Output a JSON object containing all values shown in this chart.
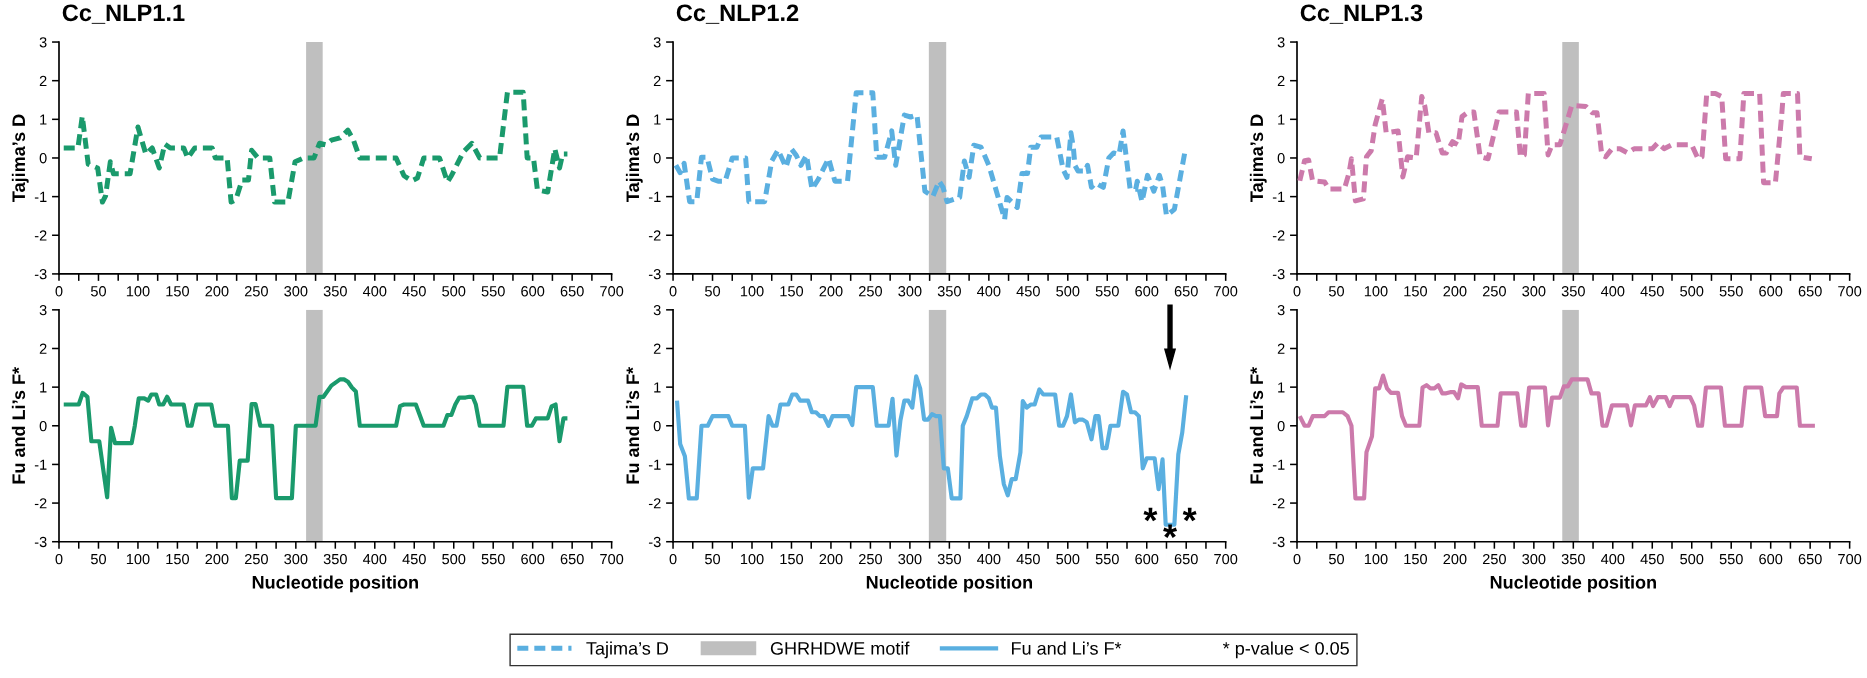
{
  "chart_data": [
    {
      "type": "line",
      "title": "Cc_NLP1.1",
      "ylabel": "Tajima’s D",
      "xlim": [
        0,
        700
      ],
      "ylim": [
        -3,
        3
      ],
      "yticks": [
        -3,
        -2,
        -1,
        0,
        1,
        2,
        3
      ],
      "xticks": [
        0,
        {
          "value": 25,
          "label": null
        },
        50,
        {
          "value": 75,
          "label": null
        },
        100,
        {
          "value": 125,
          "label": null
        },
        150,
        {
          "value": 175,
          "label": null
        },
        200,
        {
          "value": 225,
          "label": null
        },
        250,
        {
          "value": 275,
          "label": null
        },
        300,
        {
          "value": 325,
          "label": null
        },
        350,
        {
          "value": 375,
          "label": null
        },
        400,
        {
          "value": 425,
          "label": null
        },
        450,
        {
          "value": 475,
          "label": null
        },
        500,
        {
          "value": 525,
          "label": null
        },
        550,
        {
          "value": 575,
          "label": null
        },
        600,
        {
          "value": 625,
          "label": null
        },
        650,
        {
          "value": 675,
          "label": null
        },
        700
      ],
      "grid": false,
      "bands": [
        {
          "axis": "x",
          "from": 313,
          "to": 334,
          "color": "#bfbfbf"
        }
      ],
      "series": [
        {
          "color": "#1a9a6c",
          "line_style": "dashed",
          "x": [
            6,
            24,
            29.5,
            37,
            49,
            55,
            59,
            65,
            69,
            90,
            100,
            110,
            118,
            127,
            134,
            141,
            158,
            163,
            172,
            194,
            198,
            213,
            218,
            224,
            232,
            240,
            244,
            252,
            267,
            273,
            290,
            299,
            310,
            323,
            330,
            338,
            345,
            356,
            366,
            373,
            381,
            427,
            437,
            447,
            454,
            462,
            482,
            492,
            497,
            512,
            523,
            533,
            558,
            568,
            588,
            593,
            601,
            606,
            619,
            628,
            634,
            638,
            644
          ],
          "values": [
            0.26,
            0.26,
            1.08,
            -0.16,
            -0.26,
            -1.14,
            -0.98,
            -0.1,
            -0.41,
            -0.41,
            0.8,
            0.1,
            0.26,
            -0.26,
            0.36,
            0.26,
            0.26,
            0,
            0.26,
            0.26,
            0,
            0,
            -1.14,
            -1.08,
            -0.57,
            -0.57,
            0.2,
            0,
            0,
            -1.14,
            -1.14,
            -0.1,
            0,
            0,
            0.38,
            0.34,
            0.46,
            0.52,
            0.72,
            0.46,
            0,
            0,
            -0.46,
            -0.59,
            -0.52,
            0,
            0,
            -0.62,
            -0.46,
            0.15,
            0.38,
            0,
            0,
            1.7,
            1.7,
            0,
            0,
            -0.83,
            -0.88,
            0.24,
            -0.26,
            0.1,
            0.1
          ]
        }
      ]
    },
    {
      "type": "line",
      "title": "Cc_NLP1.2",
      "ylabel": "Tajima’s D",
      "xlim": [
        0,
        700
      ],
      "ylim": [
        -3,
        3
      ],
      "yticks": [
        -3,
        -2,
        -1,
        0,
        1,
        2,
        3
      ],
      "xticks": [
        0,
        {
          "value": 25,
          "label": null
        },
        50,
        {
          "value": 75,
          "label": null
        },
        100,
        {
          "value": 125,
          "label": null
        },
        150,
        {
          "value": 175,
          "label": null
        },
        200,
        {
          "value": 225,
          "label": null
        },
        250,
        {
          "value": 275,
          "label": null
        },
        300,
        {
          "value": 325,
          "label": null
        },
        350,
        {
          "value": 375,
          "label": null
        },
        400,
        {
          "value": 425,
          "label": null
        },
        450,
        {
          "value": 475,
          "label": null
        },
        500,
        {
          "value": 525,
          "label": null
        },
        550,
        {
          "value": 575,
          "label": null
        },
        600,
        {
          "value": 625,
          "label": null
        },
        650,
        {
          "value": 675,
          "label": null
        },
        700
      ],
      "grid": false,
      "bands": [
        {
          "axis": "x",
          "from": 324,
          "to": 346,
          "color": "#bfbfbf"
        }
      ],
      "series": [
        {
          "name": "Tajima’s D",
          "color": "#5aafe0",
          "line_style": "dashed",
          "x": [
            3.6,
            9,
            14,
            21,
            30,
            36,
            43,
            50,
            57,
            66,
            75,
            92,
            96,
            116,
            125,
            133,
            143,
            150,
            156,
            162,
            169,
            176,
            184,
            197,
            205,
            221,
            232,
            253,
            258,
            268,
            277,
            282,
            293,
            301,
            309,
            319,
            329,
            337,
            342,
            347,
            363,
            369,
            375,
            381,
            390,
            400,
            420,
            423,
            436,
            442,
            449,
            453,
            461,
            466,
            486,
            494,
            499,
            504,
            507,
            509,
            513,
            522,
            525,
            530,
            535,
            545,
            552,
            558,
            565,
            570,
            579,
            586,
            588,
            594,
            601,
            609,
            616,
            620,
            625,
            635,
            649
          ],
          "values": [
            -0.19,
            -0.38,
            -0.14,
            -1.13,
            -1.13,
            0.02,
            0.02,
            -0.55,
            -0.6,
            -0.6,
            0,
            0,
            -1.13,
            -1.13,
            -0.08,
            0.21,
            -0.24,
            0.23,
            0.07,
            -0.19,
            0.07,
            -0.81,
            -0.55,
            -0.01,
            -0.6,
            -0.6,
            1.69,
            1.69,
            0.02,
            0.02,
            0.7,
            -0.19,
            1.11,
            1.06,
            1.11,
            -0.86,
            -1.0,
            -0.6,
            -0.76,
            -1.13,
            -1.02,
            -0.08,
            -0.5,
            0.33,
            0.28,
            -0.19,
            -1.59,
            -1.02,
            -1.28,
            -0.4,
            -0.4,
            0.28,
            0.28,
            0.54,
            0.54,
            -0.29,
            -0.5,
            0.65,
            0.28,
            -0.19,
            -0.34,
            -0.34,
            -0.19,
            -0.76,
            -0.65,
            -0.76,
            0,
            0.13,
            0.09,
            0.7,
            -0.81,
            -0.81,
            -0.6,
            -1.13,
            -0.45,
            -0.86,
            -0.45,
            -0.71,
            -1.49,
            -1.33,
            0.23
          ]
        }
      ]
    },
    {
      "type": "line",
      "title": "Cc_NLP1.3",
      "ylabel": "Tajima’s D",
      "xlim": [
        0,
        700
      ],
      "ylim": [
        -3,
        3
      ],
      "yticks": [
        -3,
        -2,
        -1,
        0,
        1,
        2,
        3
      ],
      "xticks": [
        0,
        {
          "value": 25,
          "label": null
        },
        50,
        {
          "value": 75,
          "label": null
        },
        100,
        {
          "value": 125,
          "label": null
        },
        150,
        {
          "value": 175,
          "label": null
        },
        200,
        {
          "value": 225,
          "label": null
        },
        250,
        {
          "value": 275,
          "label": null
        },
        300,
        {
          "value": 325,
          "label": null
        },
        350,
        {
          "value": 375,
          "label": null
        },
        400,
        {
          "value": 425,
          "label": null
        },
        450,
        {
          "value": 475,
          "label": null
        },
        500,
        {
          "value": 525,
          "label": null
        },
        550,
        {
          "value": 575,
          "label": null
        },
        600,
        {
          "value": 625,
          "label": null
        },
        650,
        {
          "value": 675,
          "label": null
        },
        700
      ],
      "grid": false,
      "bands": [
        {
          "axis": "x",
          "from": 336,
          "to": 357,
          "color": "#bfbfbf"
        }
      ],
      "series": [
        {
          "color": "#cc7aab",
          "line_style": "dashed",
          "x": [
            3.5,
            9.6,
            14.7,
            19.7,
            35,
            40,
            60,
            66,
            69,
            74,
            84,
            88,
            94,
            99,
            108,
            113,
            128,
            134,
            140,
            151,
            158,
            162,
            167,
            176,
            184,
            189,
            197,
            204,
            209,
            217,
            224,
            232,
            242,
            256,
            278,
            283,
            288,
            293,
            313,
            318,
            323,
            333,
            348,
            366,
            374,
            380,
            386,
            391,
            399,
            409,
            419,
            427,
            450,
            457,
            465,
            475,
            500,
            508,
            513,
            519,
            530,
            538,
            543,
            561,
            566,
            586,
            591,
            606,
            614,
            616,
            634,
            637,
            652
          ],
          "values": [
            -0.59,
            -0.07,
            -0.05,
            -0.59,
            -0.62,
            -0.8,
            -0.8,
            -0.38,
            -0.02,
            -1.11,
            -1.06,
            0.03,
            0.19,
            0.86,
            1.53,
            0.65,
            0.7,
            -0.49,
            0.03,
            0,
            1.59,
            1.33,
            0.65,
            0.65,
            0.13,
            0.13,
            0.42,
            0.34,
            1.07,
            1.19,
            1.19,
            0.03,
            -0.02,
            1.19,
            1.19,
            0.03,
            0.08,
            1.67,
            1.67,
            0.08,
            0.34,
            0.34,
            1.36,
            1.33,
            1.17,
            1.17,
            0.08,
            0.03,
            0.24,
            0.24,
            0.13,
            0.24,
            0.24,
            0.39,
            0.24,
            0.34,
            0.34,
            -0.02,
            0.03,
            1.67,
            1.67,
            1.59,
            -0.02,
            -0.02,
            1.67,
            1.67,
            -0.64,
            -0.64,
            1.12,
            1.67,
            1.67,
            0.03,
            -0.02
          ]
        }
      ]
    },
    {
      "type": "line",
      "xlabel": "Nucleotide position",
      "ylabel": "Fu and Li’s F*",
      "xlim": [
        0,
        700
      ],
      "ylim": [
        -3,
        3
      ],
      "yticks": [
        -3,
        -2,
        -1,
        0,
        1,
        2,
        3
      ],
      "xticks": [
        0,
        {
          "value": 25,
          "label": null
        },
        50,
        {
          "value": 75,
          "label": null
        },
        100,
        {
          "value": 125,
          "label": null
        },
        150,
        {
          "value": 175,
          "label": null
        },
        200,
        {
          "value": 225,
          "label": null
        },
        250,
        {
          "value": 275,
          "label": null
        },
        300,
        {
          "value": 325,
          "label": null
        },
        350,
        {
          "value": 375,
          "label": null
        },
        400,
        {
          "value": 425,
          "label": null
        },
        450,
        {
          "value": 475,
          "label": null
        },
        500,
        {
          "value": 525,
          "label": null
        },
        550,
        {
          "value": 575,
          "label": null
        },
        600,
        {
          "value": 625,
          "label": null
        },
        650,
        {
          "value": 675,
          "label": null
        },
        700
      ],
      "grid": false,
      "bands": [
        {
          "axis": "x",
          "from": 313,
          "to": 334,
          "color": "#bfbfbf"
        }
      ],
      "series": [
        {
          "color": "#1a9a6c",
          "line_style": "solid",
          "x": [
            6,
            25,
            30,
            36,
            41,
            51,
            61,
            66,
            71,
            92,
            96,
            101,
            108,
            113,
            117,
            123,
            127,
            132,
            137,
            142,
            158,
            163,
            168,
            174,
            193,
            198,
            214,
            219,
            224,
            229,
            239,
            244,
            249,
            255,
            270,
            275,
            295,
            300,
            325,
            330,
            335,
            345,
            356,
            361,
            366,
            371,
            376,
            381,
            427,
            432,
            437,
            452,
            462,
            487,
            492,
            497,
            502,
            507,
            515,
            520,
            524,
            528,
            533,
            563,
            568,
            588,
            593,
            599,
            604,
            619,
            624,
            629,
            634,
            639,
            644
          ],
          "values": [
            0.55,
            0.55,
            0.85,
            0.75,
            -0.4,
            -0.4,
            -1.85,
            -0.05,
            -0.45,
            -0.45,
            0,
            0.71,
            0.71,
            0.65,
            0.81,
            0.81,
            0.55,
            0.55,
            0.75,
            0.55,
            0.55,
            0,
            0,
            0.55,
            0.55,
            0,
            0,
            -1.87,
            -1.87,
            -0.9,
            -0.9,
            0.56,
            0.56,
            0,
            0,
            -1.87,
            -1.87,
            0,
            0,
            0.75,
            0.75,
            1.04,
            1.2,
            1.2,
            1.14,
            0.99,
            0.89,
            0,
            0,
            0.51,
            0.55,
            0.55,
            0,
            0,
            0.28,
            0.28,
            0.55,
            0.73,
            0.73,
            0.75,
            0.75,
            0.55,
            0,
            0,
            1.01,
            1.01,
            0,
            0,
            0.19,
            0.19,
            0.5,
            0.55,
            -0.4,
            0.19,
            0.19
          ]
        }
      ]
    },
    {
      "type": "line",
      "xlabel": "Nucleotide position",
      "ylabel": "Fu and Li’s F*",
      "xlim": [
        0,
        700
      ],
      "ylim": [
        -3,
        3
      ],
      "yticks": [
        -3,
        -2,
        -1,
        0,
        1,
        2,
        3
      ],
      "xticks": [
        0,
        {
          "value": 25,
          "label": null
        },
        50,
        {
          "value": 75,
          "label": null
        },
        100,
        {
          "value": 125,
          "label": null
        },
        150,
        {
          "value": 175,
          "label": null
        },
        200,
        {
          "value": 225,
          "label": null
        },
        250,
        {
          "value": 275,
          "label": null
        },
        300,
        {
          "value": 325,
          "label": null
        },
        350,
        {
          "value": 375,
          "label": null
        },
        400,
        {
          "value": 425,
          "label": null
        },
        450,
        {
          "value": 475,
          "label": null
        },
        500,
        {
          "value": 525,
          "label": null
        },
        550,
        {
          "value": 575,
          "label": null
        },
        600,
        {
          "value": 625,
          "label": null
        },
        650,
        {
          "value": 675,
          "label": null
        },
        700
      ],
      "grid": false,
      "legend": "bottom",
      "bands": [
        {
          "axis": "x",
          "from": 324,
          "to": 346,
          "color": "#bfbfbf",
          "label": "GHRHDWE motif"
        }
      ],
      "annotations": [
        {
          "text": "*",
          "x": 624,
          "y": -2.56
        },
        {
          "text": "*",
          "x": 629.5,
          "y": -2.56
        },
        {
          "text": "*",
          "x": 635,
          "y": -2.56
        },
        "* p-value < 0.05"
      ],
      "series": [
        {
          "name": "Fu and Li’s F*",
          "color": "#5aafe0",
          "line_style": "solid",
          "x": [
            5,
            9,
            15,
            20,
            30,
            36,
            44,
            50,
            70,
            75,
            91,
            96,
            101,
            114,
            121,
            126,
            131,
            136,
            146,
            151,
            156,
            161,
            171,
            176,
            181,
            186,
            191,
            197,
            202,
            222,
            227,
            232,
            253,
            258,
            273,
            278,
            283,
            288,
            293,
            298,
            303,
            308,
            313,
            318,
            323,
            328,
            333,
            338,
            343,
            348,
            353,
            364,
            367,
            372,
            379,
            385,
            390,
            395,
            400,
            404,
            409,
            414,
            419,
            424,
            429,
            434,
            440,
            443,
            448,
            453,
            458,
            464,
            469,
            484,
            489,
            494,
            499,
            504,
            509,
            514,
            519,
            524,
            530,
            535,
            539,
            544,
            549,
            554,
            564,
            570,
            575,
            580,
            585,
            590,
            595,
            600,
            610,
            615,
            620,
            624,
            635,
            640,
            645,
            650
          ],
          "values": [
            0.65,
            -0.47,
            -0.79,
            -1.88,
            -1.88,
            0,
            0,
            0.25,
            0.25,
            0,
            0,
            -1.86,
            -1.1,
            -1.1,
            0.25,
            0,
            0,
            0.55,
            0.55,
            0.81,
            0.81,
            0.65,
            0.65,
            0.35,
            0.35,
            0.25,
            0.25,
            0,
            0.25,
            0.25,
            0.02,
            1.0,
            1.0,
            0,
            0,
            0.7,
            -0.77,
            0.14,
            0.65,
            0.65,
            0.47,
            1.28,
            0.97,
            0.16,
            0.16,
            0.3,
            0.25,
            0.25,
            -1.1,
            -1.1,
            -1.88,
            -1.88,
            0,
            0.25,
            0.71,
            0.71,
            0.81,
            0.81,
            0.71,
            0.47,
            0.47,
            -0.79,
            -1.51,
            -1.8,
            -1.38,
            -1.38,
            -0.69,
            0.64,
            0.47,
            0.55,
            0.55,
            0.94,
            0.81,
            0.81,
            0,
            0,
            0.25,
            0.81,
            0.09,
            0.16,
            0.16,
            0.09,
            -0.35,
            0.25,
            0.25,
            -0.58,
            -0.58,
            0,
            0,
            0.88,
            0.81,
            0.35,
            0.35,
            0.25,
            -1.1,
            -0.84,
            -0.84,
            -1.64,
            -0.87,
            -2.56,
            -2.56,
            -0.74,
            -0.17,
            0.79
          ]
        }
      ]
    },
    {
      "type": "line",
      "xlabel": "Nucleotide position",
      "ylabel": "Fu and Li’s F*",
      "xlim": [
        0,
        700
      ],
      "ylim": [
        -3,
        3
      ],
      "yticks": [
        -3,
        -2,
        -1,
        0,
        1,
        2,
        3
      ],
      "xticks": [
        0,
        {
          "value": 25,
          "label": null
        },
        50,
        {
          "value": 75,
          "label": null
        },
        100,
        {
          "value": 125,
          "label": null
        },
        150,
        {
          "value": 175,
          "label": null
        },
        200,
        {
          "value": 225,
          "label": null
        },
        250,
        {
          "value": 275,
          "label": null
        },
        300,
        {
          "value": 325,
          "label": null
        },
        350,
        {
          "value": 375,
          "label": null
        },
        400,
        {
          "value": 425,
          "label": null
        },
        450,
        {
          "value": 475,
          "label": null
        },
        500,
        {
          "value": 525,
          "label": null
        },
        550,
        {
          "value": 575,
          "label": null
        },
        600,
        {
          "value": 625,
          "label": null
        },
        650,
        {
          "value": 675,
          "label": null
        },
        700
      ],
      "grid": false,
      "bands": [
        {
          "axis": "x",
          "from": 336,
          "to": 357,
          "color": "#bfbfbf"
        }
      ],
      "series": [
        {
          "color": "#cc7aab",
          "line_style": "solid",
          "x": [
            3.5,
            9.6,
            14.7,
            20,
            35,
            40,
            58,
            64,
            69,
            74,
            85,
            88,
            95,
            99,
            104,
            109,
            114,
            119,
            128,
            133,
            138,
            155,
            159,
            164,
            169,
            174,
            179,
            184,
            189,
            194,
            199,
            204,
            208,
            214,
            229,
            234,
            254,
            258,
            279,
            284,
            289,
            294,
            314,
            318,
            323,
            333,
            338,
            343,
            348,
            368,
            373,
            382,
            387,
            392,
            399,
            418,
            423,
            428,
            442,
            447,
            451,
            457,
            467,
            472,
            477,
            498,
            503,
            508,
            513,
            518,
            537,
            542,
            563,
            568,
            588,
            593,
            608,
            611,
            616,
            633,
            637,
            656
          ],
          "values": [
            0.25,
            0,
            0,
            0.25,
            0.25,
            0.35,
            0.35,
            0.25,
            0,
            -1.88,
            -1.88,
            -0.68,
            -0.27,
            0.97,
            0.97,
            1.3,
            0.97,
            0.85,
            0.85,
            0.25,
            0,
            0,
            0.99,
            1.05,
            0.97,
            0.97,
            1.05,
            0.84,
            0.84,
            0.87,
            0.87,
            0.71,
            1.07,
            1.0,
            1.0,
            0,
            0,
            0.84,
            0.84,
            0,
            0,
            0.99,
            0.99,
            0.01,
            0.73,
            0.73,
            1.02,
            1.02,
            1.2,
            1.2,
            0.84,
            0.84,
            0,
            0,
            0.53,
            0.53,
            0.01,
            0.53,
            0.53,
            0.74,
            0.51,
            0.74,
            0.74,
            0.51,
            0.74,
            0.74,
            0.53,
            0,
            0,
            0.99,
            0.99,
            0,
            0,
            0.99,
            0.99,
            0.25,
            0.25,
            0.84,
            0.99,
            0.99,
            0,
            0
          ]
        }
      ]
    }
  ]
}
